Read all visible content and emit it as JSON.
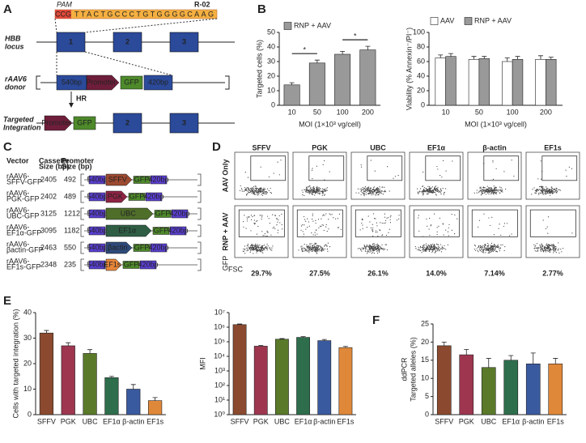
{
  "panels": {
    "a": "A",
    "b": "B",
    "c": "C",
    "d": "D",
    "e": "E",
    "f": "F"
  },
  "diagram_a": {
    "pam": "PAM",
    "guide": "R-02",
    "pam_seq": "CCG",
    "protospacer": "TTACTGCCCTGTGGGGCAAG",
    "locus": [
      "HBB",
      "locus"
    ],
    "donor": [
      "rAAV6",
      "donor"
    ],
    "integration": [
      "Targeted",
      "Integration"
    ],
    "exons": [
      "1",
      "2",
      "3"
    ],
    "left_arm": "540bp",
    "promoter": "Promoter",
    "gfp": "GFP",
    "right_arm": "420bp",
    "hr": "HR"
  },
  "table_c": {
    "headers": [
      [
        "Vector"
      ],
      [
        "Cassette",
        "Size (bp)"
      ],
      [
        "Promoter",
        "Size (bp)"
      ]
    ],
    "left_arm": "540bp",
    "gfp": "GFP",
    "right_arm": "420bp",
    "rows": [
      {
        "vector": [
          "rAAV6-",
          "SFFV-GFP"
        ],
        "cassette": "2405",
        "promoter_size": "492",
        "promoter": "SFFV",
        "color": "#9c4a30"
      },
      {
        "vector": [
          "rAAV6-",
          "PGK-GFP"
        ],
        "cassette": "2402",
        "promoter_size": "489",
        "promoter": "PGK",
        "color": "#8e2444"
      },
      {
        "vector": [
          "rAAV6-",
          "UBC-GFP"
        ],
        "cassette": "3125",
        "promoter_size": "1212",
        "promoter": "UBC",
        "color": "#4f6e2a"
      },
      {
        "vector": [
          "rAAV6-",
          "EF1α-GFP"
        ],
        "cassette": "3095",
        "promoter_size": "1182",
        "promoter": "EF1α",
        "color": "#2f5e45"
      },
      {
        "vector": [
          "rAAV6-",
          "βactin-GFP"
        ],
        "cassette": "2463",
        "promoter_size": "550",
        "promoter": "βactin",
        "color": "#2e4a7a"
      },
      {
        "vector": [
          "rAAV6-",
          "EF1s-GFP"
        ],
        "cassette": "2348",
        "promoter_size": "235",
        "promoter": "EF1s",
        "color": "#e8873a"
      }
    ]
  },
  "flow_d": {
    "columns": [
      "SFFV",
      "PGK",
      "UBC",
      "EF1α",
      "β-actin",
      "EF1s"
    ],
    "rows": [
      "AAV Only",
      "RNP + AAV"
    ],
    "percentages": [
      "29.7%",
      "27.5%",
      "26.1%",
      "14.0%",
      "7.14%",
      "2.77%"
    ],
    "y_axis": "GFP",
    "x_axis": "FSC"
  },
  "chart_data": [
    {
      "type": "bar",
      "ylabel": [
        "Targeted cells (%)"
      ],
      "xlabel": "MOI (1×10³ vg/cell)",
      "categories": [
        "10",
        "50",
        "100",
        "200"
      ],
      "series": [
        {
          "name": "RNP + AAV",
          "color": "#999999",
          "values": [
            14,
            29,
            35,
            38
          ],
          "errors": [
            1.5,
            2,
            2,
            2.5
          ]
        }
      ],
      "ylim": [
        0,
        50
      ],
      "yticks": [
        0,
        10,
        20,
        30,
        40,
        50
      ],
      "legend": "top-left",
      "significance": [
        {
          "label": "*",
          "between": [
            "10",
            "50"
          ]
        },
        {
          "label": "*",
          "between": [
            "100",
            "200"
          ]
        }
      ]
    },
    {
      "type": "bar",
      "ylabel": [
        "Viability (% Annexin⁻/PI⁻)"
      ],
      "xlabel": "MOI (1×10³ vg/cell)",
      "categories": [
        "10",
        "50",
        "100",
        "200"
      ],
      "series": [
        {
          "name": "AAV",
          "color": "#ffffff",
          "values": [
            65,
            63,
            60,
            63
          ],
          "errors": [
            4,
            4,
            5,
            5
          ]
        },
        {
          "name": "RNP + AAV",
          "color": "#999999",
          "values": [
            67,
            64,
            63,
            63
          ],
          "errors": [
            4,
            3,
            4,
            3
          ]
        }
      ],
      "ylim": [
        0,
        100
      ],
      "yticks": [
        0,
        20,
        40,
        60,
        80,
        100
      ],
      "legend": "top"
    },
    {
      "type": "bar",
      "ylabel": [
        "Cells with targeted integration (%)"
      ],
      "categories": [
        "SFFV",
        "PGK",
        "UBC",
        "EF1α",
        "β-actin",
        "EF1s"
      ],
      "values": [
        32,
        27,
        24,
        14.5,
        10,
        5.5
      ],
      "errors": [
        1,
        1.2,
        1.5,
        0.5,
        1.8,
        1.2
      ],
      "colors": [
        "#8b4a2f",
        "#9e3650",
        "#5a7a2a",
        "#2e6e4c",
        "#3a5aa0",
        "#e0883a"
      ],
      "ylim": [
        0,
        40
      ],
      "yticks": [
        0,
        10,
        20,
        30,
        40
      ]
    },
    {
      "type": "bar",
      "ylabel": [
        "MFI"
      ],
      "log_scale": true,
      "categories": [
        "SFFV",
        "PGK",
        "UBC",
        "EF1α",
        "β-actin",
        "EF1s"
      ],
      "values": [
        1500000,
        50000,
        150000,
        200000,
        120000,
        40000
      ],
      "errors": [
        150000,
        6000,
        15000,
        25000,
        25000,
        8000
      ],
      "colors": [
        "#8b4a2f",
        "#9e3650",
        "#5a7a2a",
        "#2e6e4c",
        "#3a5aa0",
        "#e0883a"
      ],
      "ylim": [
        1,
        10000000
      ],
      "yticks": [
        {
          "value": 1,
          "label": "10⁰"
        },
        {
          "value": 10,
          "label": "10¹"
        },
        {
          "value": 100,
          "label": "10²"
        },
        {
          "value": 1000,
          "label": "10³"
        },
        {
          "value": 10000,
          "label": "10⁴"
        },
        {
          "value": 100000,
          "label": "10⁵"
        },
        {
          "value": 1000000,
          "label": "10⁶"
        },
        {
          "value": 10000000,
          "label": "10⁷"
        }
      ]
    },
    {
      "type": "bar",
      "ylabel": [
        "ddPCR",
        "Targeted alleles (%)"
      ],
      "categories": [
        "SFFV",
        "PGK",
        "UBC",
        "EF1α",
        "β-actin",
        "EF1s"
      ],
      "values": [
        19,
        16.5,
        13,
        15,
        14,
        14
      ],
      "errors": [
        1,
        1.5,
        2.5,
        1.3,
        3,
        1.5
      ],
      "colors": [
        "#8b4a2f",
        "#9e3650",
        "#5a7a2a",
        "#2e6e4c",
        "#3a5aa0",
        "#e0883a"
      ],
      "ylim": [
        0,
        25
      ],
      "yticks": [
        0,
        5,
        10,
        15,
        20,
        25
      ]
    }
  ]
}
